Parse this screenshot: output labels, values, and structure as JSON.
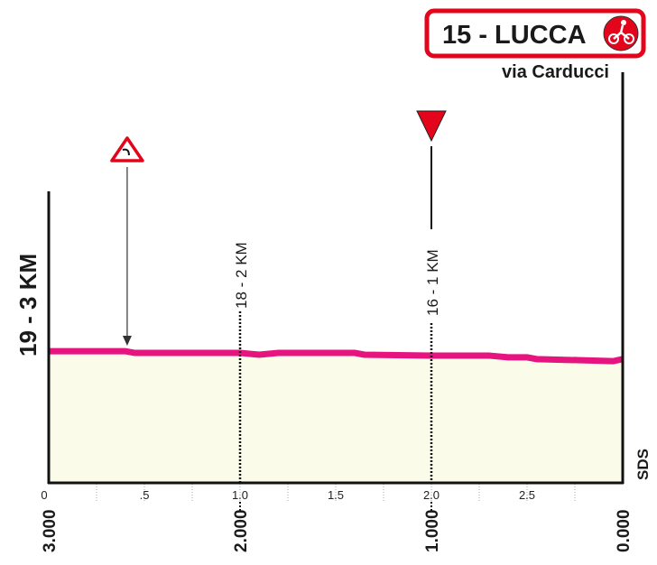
{
  "finish": {
    "label": "15 - LUCCA",
    "street": "via Carducci",
    "icon": "cyclist-icon"
  },
  "left_label": "19 - 3 KM",
  "sds_label": "SDS",
  "colors": {
    "profile": "#e5147e",
    "fill": "#fafbe8",
    "banner": "#e3051b"
  },
  "chart_data": {
    "type": "area",
    "xlim": [
      0,
      3
    ],
    "ylim": [
      0,
      100
    ],
    "grid": true,
    "top_ticks": [
      {
        "v": 0,
        "label": "0"
      },
      {
        "v": 0.5,
        "label": ".5"
      },
      {
        "v": 1,
        "label": "1.0"
      },
      {
        "v": 1.5,
        "label": "1.5"
      },
      {
        "v": 2,
        "label": "2.0"
      },
      {
        "v": 2.5,
        "label": "2.5"
      }
    ],
    "bottom_ticks": [
      {
        "v": 0,
        "label": "3.000"
      },
      {
        "v": 1,
        "label": "2.000"
      },
      {
        "v": 2,
        "label": "1.000"
      },
      {
        "v": 3,
        "label": "0.000"
      }
    ],
    "km_markers": [
      {
        "v": 1,
        "label": "18 - 2 KM"
      },
      {
        "v": 2,
        "label": "16 - 1 KM"
      }
    ],
    "annotations": [
      {
        "v": 0.41,
        "type": "dangerous-curve-icon"
      },
      {
        "v": 2.0,
        "type": "flamme-rouge-icon"
      }
    ],
    "profile": [
      [
        0,
        44.9
      ],
      [
        0.4,
        44.9
      ],
      [
        0.45,
        44.3
      ],
      [
        1.0,
        44.3
      ],
      [
        1.1,
        43.7
      ],
      [
        1.2,
        44.3
      ],
      [
        1.6,
        44.3
      ],
      [
        1.65,
        43.7
      ],
      [
        2.0,
        43.4
      ],
      [
        2.3,
        43.4
      ],
      [
        2.4,
        42.8
      ],
      [
        2.5,
        42.8
      ],
      [
        2.55,
        42.2
      ],
      [
        2.95,
        41.5
      ],
      [
        3.0,
        42.2
      ]
    ]
  }
}
